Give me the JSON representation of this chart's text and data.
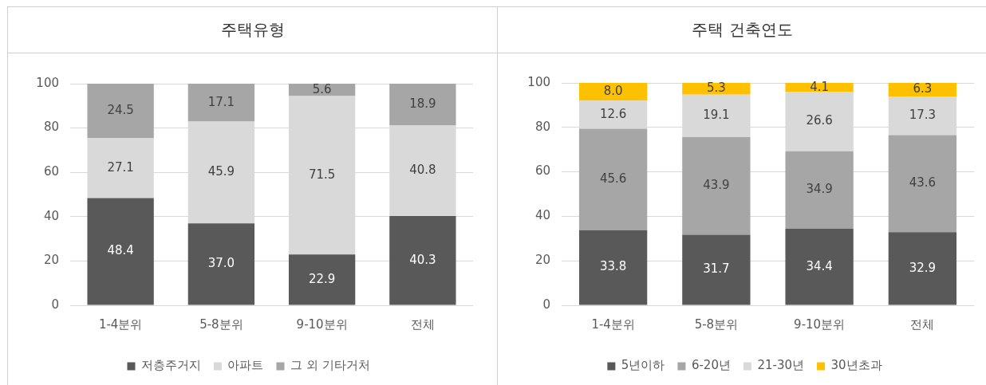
{
  "chart_data": [
    {
      "type": "bar",
      "title": "주택유형",
      "categories": [
        "1-4분위",
        "5-8분위",
        "9-10분위",
        "전체"
      ],
      "stacked": true,
      "ylim": [
        0,
        100
      ],
      "yticks": [
        0,
        20,
        40,
        60,
        80,
        100
      ],
      "grid": "y",
      "legend": "bottom",
      "series": [
        {
          "name": "저층주거지",
          "color": "#595959",
          "values": [
            48.4,
            37.0,
            22.9,
            40.3
          ],
          "value_labels": [
            "48.4",
            "37.0",
            "22.9",
            "40.3"
          ]
        },
        {
          "name": "아파트",
          "color": "#d9d9d9",
          "values": [
            27.1,
            45.9,
            71.5,
            40.8
          ],
          "value_labels": [
            "27.1",
            "45.9",
            "71.5",
            "40.8"
          ]
        },
        {
          "name": "그 외 기타거처",
          "color": "#a6a6a6",
          "values": [
            24.5,
            17.1,
            5.6,
            18.9
          ],
          "value_labels": [
            "24.5",
            "17.1",
            "5.6",
            "18.9"
          ]
        }
      ]
    },
    {
      "type": "bar",
      "title": "주택 건축연도",
      "categories": [
        "1-4분위",
        "5-8분위",
        "9-10분위",
        "전체"
      ],
      "stacked": true,
      "ylim": [
        0,
        100
      ],
      "yticks": [
        0,
        20,
        40,
        60,
        80,
        100
      ],
      "grid": "y",
      "legend": "bottom",
      "series": [
        {
          "name": "5년이하",
          "color": "#595959",
          "values": [
            33.8,
            31.7,
            34.4,
            32.9
          ],
          "value_labels": [
            "33.8",
            "31.7",
            "34.4",
            "32.9"
          ]
        },
        {
          "name": "6-20년",
          "color": "#a6a6a6",
          "values": [
            45.6,
            43.9,
            34.9,
            43.6
          ],
          "value_labels": [
            "45.6",
            "43.9",
            "34.9",
            "43.6"
          ]
        },
        {
          "name": "21-30년",
          "color": "#d9d9d9",
          "values": [
            12.6,
            19.1,
            26.6,
            17.3
          ],
          "value_labels": [
            "12.6",
            "19.1",
            "26.6",
            "17.3"
          ]
        },
        {
          "name": "30년초과",
          "color": "#ffc000",
          "values": [
            8.0,
            5.3,
            4.1,
            6.3
          ],
          "value_labels": [
            "8.0",
            "5.3",
            "4.1",
            "6.3"
          ]
        }
      ]
    }
  ]
}
